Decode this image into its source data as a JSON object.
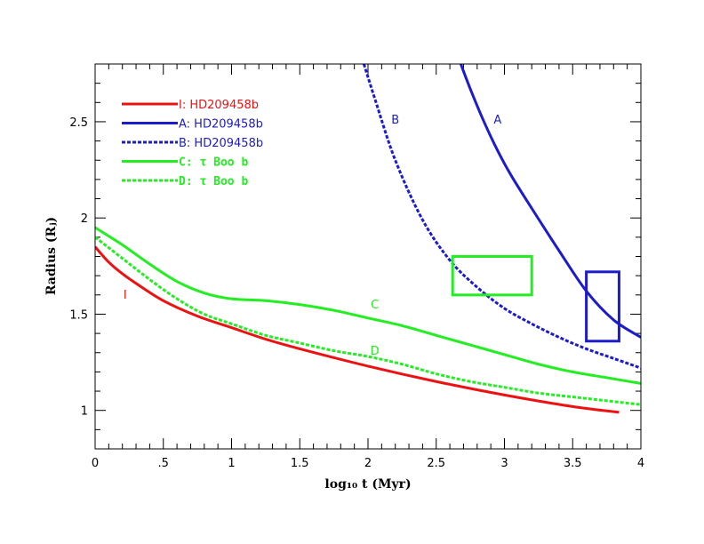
{
  "chart_data": {
    "type": "line",
    "xlabel": "log₁₀ t (Myr)",
    "ylabel": "Radius (Rⱼ)",
    "xlim": [
      0,
      4
    ],
    "ylim": [
      0.8,
      2.8
    ],
    "x_ticks": [
      {
        "value": 0,
        "label": "0"
      },
      {
        "value": 0.5,
        "label": ".5"
      },
      {
        "value": 1,
        "label": "1"
      },
      {
        "value": 1.5,
        "label": "1.5"
      },
      {
        "value": 2,
        "label": "2"
      },
      {
        "value": 2.5,
        "label": "2.5"
      },
      {
        "value": 3,
        "label": "3"
      },
      {
        "value": 3.5,
        "label": "3.5"
      },
      {
        "value": 4,
        "label": "4"
      }
    ],
    "y_ticks": [
      {
        "value": 1,
        "label": "1"
      },
      {
        "value": 1.5,
        "label": "1.5"
      },
      {
        "value": 2,
        "label": "2"
      },
      {
        "value": 2.5,
        "label": "2.5"
      }
    ],
    "legend_position": "top-left",
    "series": [
      {
        "id": "I",
        "name": "I: HD209458b",
        "color": "#ee1111",
        "dash": false,
        "label": "I",
        "label_at": [
          0.22,
          1.58
        ],
        "x": [
          0,
          0.1,
          0.2,
          0.3,
          0.5,
          0.75,
          1.0,
          1.25,
          1.5,
          2.0,
          2.5,
          3.0,
          3.5,
          3.84
        ],
        "y": [
          1.85,
          1.77,
          1.71,
          1.66,
          1.57,
          1.49,
          1.43,
          1.37,
          1.32,
          1.23,
          1.15,
          1.08,
          1.02,
          0.99
        ]
      },
      {
        "id": "A",
        "name": "A: HD209458b",
        "color": "#1c1ccc",
        "dash": false,
        "label": "A",
        "label_at": [
          2.95,
          2.49
        ],
        "x": [
          2.68,
          2.75,
          2.85,
          2.95,
          3.05,
          3.2,
          3.4,
          3.6,
          3.8,
          4.0
        ],
        "y": [
          2.8,
          2.67,
          2.5,
          2.35,
          2.22,
          2.05,
          1.83,
          1.62,
          1.47,
          1.38
        ]
      },
      {
        "id": "B",
        "name": "B: HD209458b",
        "color": "#1c1ccc",
        "dash": true,
        "label": "B",
        "label_at": [
          2.2,
          2.49
        ],
        "x": [
          1.97,
          2.05,
          2.2,
          2.4,
          2.6,
          2.8,
          3.0,
          3.2,
          3.4,
          3.6,
          3.8,
          4.0
        ],
        "y": [
          2.8,
          2.62,
          2.3,
          1.99,
          1.78,
          1.64,
          1.53,
          1.45,
          1.38,
          1.32,
          1.27,
          1.22
        ]
      },
      {
        "id": "C",
        "name": "C: τ Boo b",
        "color": "#22ee22",
        "dash": false,
        "label": "C",
        "label_at": [
          2.05,
          1.53
        ],
        "x": [
          0,
          0.2,
          0.4,
          0.6,
          0.8,
          1.0,
          1.25,
          1.5,
          1.75,
          2.0,
          2.25,
          2.5,
          2.75,
          3.0,
          3.25,
          3.5,
          3.75,
          4.0
        ],
        "y": [
          1.95,
          1.86,
          1.76,
          1.67,
          1.61,
          1.58,
          1.57,
          1.55,
          1.52,
          1.48,
          1.44,
          1.39,
          1.34,
          1.29,
          1.24,
          1.2,
          1.17,
          1.14
        ]
      },
      {
        "id": "D",
        "name": "D: τ Boo b",
        "color": "#22ee22",
        "dash": true,
        "label": "D",
        "label_at": [
          2.05,
          1.29
        ],
        "x": [
          0,
          0.2,
          0.4,
          0.6,
          0.8,
          1.0,
          1.25,
          1.5,
          1.75,
          2.0,
          2.25,
          2.5,
          2.75,
          3.0,
          3.25,
          3.5,
          3.75,
          4.0
        ],
        "y": [
          1.9,
          1.79,
          1.68,
          1.58,
          1.5,
          1.45,
          1.39,
          1.35,
          1.31,
          1.28,
          1.24,
          1.19,
          1.15,
          1.12,
          1.09,
          1.07,
          1.05,
          1.03
        ]
      }
    ],
    "boxes": [
      {
        "name": "tau-boo-box",
        "color": "#22ee22",
        "x0": 2.62,
        "x1": 3.2,
        "y0": 1.6,
        "y1": 1.8
      },
      {
        "name": "hd209458-box",
        "color": "#1c1ccc",
        "x0": 3.6,
        "x1": 3.84,
        "y0": 1.36,
        "y1": 1.72
      }
    ]
  }
}
